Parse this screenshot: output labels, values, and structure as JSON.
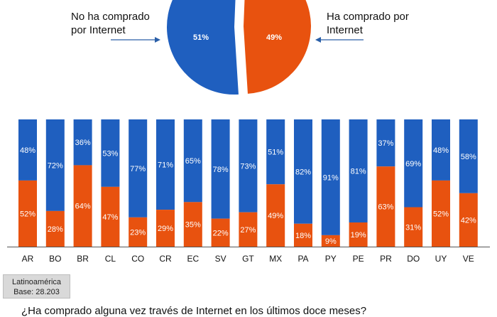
{
  "pie": {
    "no_label_line1": "No ha comprado",
    "no_label_line2": "por Internet",
    "yes_label_line1": "Ha comprado por",
    "yes_label_line2": "Internet",
    "no_value": "51%",
    "yes_value": "49%"
  },
  "colors": {
    "blue": "#1f5fbf",
    "orange": "#e8520f",
    "axis": "#555555",
    "arrow": "#2a5fa8"
  },
  "chart_data": [
    {
      "type": "pie",
      "categories": [
        "No ha comprado por Internet",
        "Ha comprado por Internet"
      ],
      "values": [
        51,
        49
      ]
    },
    {
      "type": "bar",
      "stacked": true,
      "normalized_percent": true,
      "categories": [
        "AR",
        "BO",
        "BR",
        "CL",
        "CO",
        "CR",
        "EC",
        "SV",
        "GT",
        "MX",
        "PA",
        "PY",
        "PE",
        "PR",
        "DO",
        "UY",
        "VE"
      ],
      "series": [
        {
          "values": [
            52,
            28,
            64,
            47,
            23,
            29,
            35,
            22,
            27,
            49,
            18,
            9,
            19,
            63,
            31,
            52,
            42
          ]
        },
        {
          "values": [
            48,
            72,
            36,
            53,
            77,
            71,
            65,
            78,
            73,
            51,
            82,
            91,
            81,
            37,
            69,
            48,
            58
          ]
        }
      ],
      "ylim": [
        0,
        100
      ]
    }
  ],
  "base_box": {
    "line1": "Latinoamérica",
    "line2": "Base: 28.203"
  },
  "question": "¿Ha comprado alguna vez través de Internet en los últimos doce meses?"
}
